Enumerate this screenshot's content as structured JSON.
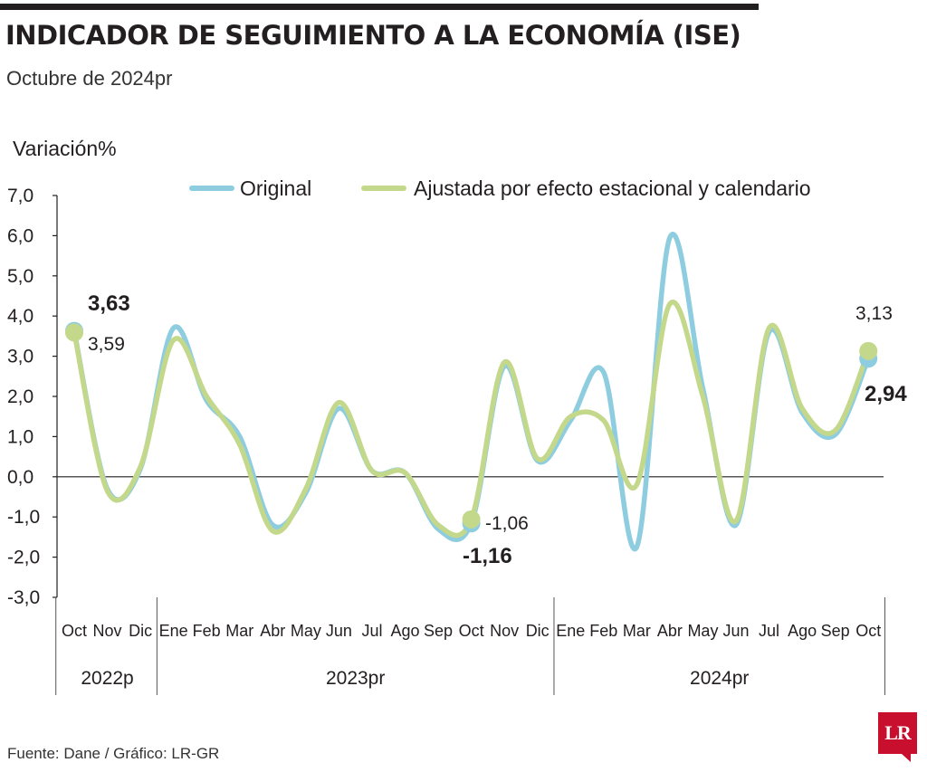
{
  "header": {
    "title": "INDICADOR DE SEGUIMIENTO A LA ECONOMÍA (ISE)",
    "subtitle": "Octubre de 2024pr"
  },
  "footer": {
    "source": "Fuente: Dane / Gráfico: LR-GR",
    "logo_text": "LR"
  },
  "colors": {
    "original": "#8ecde0",
    "ajustada": "#c3d88a",
    "text": "#231f20",
    "brand": "#c8102e"
  },
  "chart_data": {
    "type": "line",
    "ylabel": "Variación%",
    "ylim": [
      -3.0,
      7.0
    ],
    "yticks": [
      "7,0",
      "6,0",
      "5,0",
      "4,0",
      "3,0",
      "2,0",
      "1,0",
      "0,0",
      "-1,0",
      "-2,0",
      "-3,0"
    ],
    "categories": [
      "Oct",
      "Nov",
      "Dic",
      "Ene",
      "Feb",
      "Mar",
      "Abr",
      "May",
      "Jun",
      "Jul",
      "Ago",
      "Sep",
      "Oct",
      "Nov",
      "Dic",
      "Ene",
      "Feb",
      "Mar",
      "Abr",
      "May",
      "Jun",
      "Jul",
      "Ago",
      "Sep",
      "Oct"
    ],
    "periods": [
      {
        "label": "2022p",
        "from": 0,
        "to": 2
      },
      {
        "label": "2023pr",
        "from": 3,
        "to": 14
      },
      {
        "label": "2024pr",
        "from": 15,
        "to": 24
      }
    ],
    "series": [
      {
        "name": "Original",
        "values": [
          3.63,
          -0.3,
          0.2,
          3.7,
          1.9,
          1.0,
          -1.2,
          -0.4,
          1.7,
          0.15,
          0.1,
          -1.3,
          -1.16,
          2.75,
          0.4,
          1.4,
          2.6,
          -1.75,
          5.95,
          2.2,
          -1.2,
          3.6,
          1.6,
          1.05,
          2.94
        ]
      },
      {
        "name": "Ajustada por efecto estacional y calendario",
        "values": [
          3.59,
          -0.35,
          0.25,
          3.4,
          2.0,
          0.8,
          -1.35,
          -0.3,
          1.85,
          0.15,
          0.1,
          -1.2,
          -1.06,
          2.85,
          0.45,
          1.5,
          1.4,
          -0.2,
          4.3,
          2.0,
          -1.1,
          3.7,
          1.7,
          1.15,
          3.13
        ]
      }
    ],
    "annotations": [
      {
        "text": "3,63",
        "bold": true
      },
      {
        "text": "3,59",
        "bold": false
      },
      {
        "text": "-1,06",
        "bold": false
      },
      {
        "text": "-1,16",
        "bold": true
      },
      {
        "text": "3,13",
        "bold": false
      },
      {
        "text": "2,94",
        "bold": true
      }
    ],
    "legend": "top",
    "grid": false
  }
}
